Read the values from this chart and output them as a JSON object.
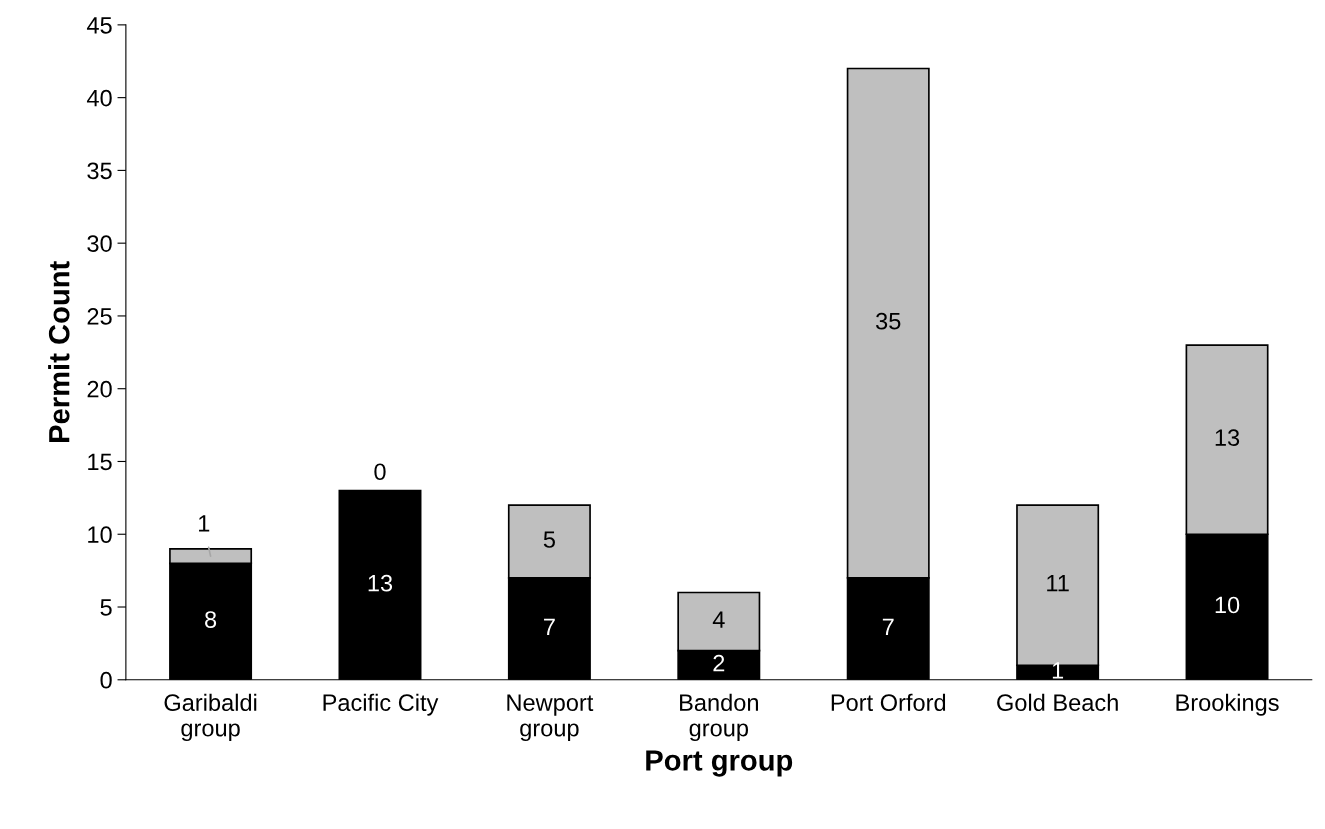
{
  "chart_data": {
    "type": "bar",
    "stacked": true,
    "xlabel": "Port group",
    "ylabel": "Permit Count",
    "categories": [
      "Garibaldi\ngroup",
      "Pacific City",
      "Newport\ngroup",
      "Bandon\ngroup",
      "Port Orford",
      "Gold Beach",
      "Brookings"
    ],
    "series": [
      {
        "color": "#000000",
        "values": [
          8,
          13,
          7,
          2,
          7,
          1,
          10
        ]
      },
      {
        "color": "#bfbfbf",
        "values": [
          1,
          0,
          5,
          4,
          35,
          11,
          13
        ]
      }
    ],
    "ylim": [
      0,
      45
    ],
    "yticks": [
      0,
      5,
      10,
      15,
      20,
      25,
      30,
      35,
      40,
      45
    ],
    "grid": false,
    "legend": false,
    "data_labels": true
  }
}
